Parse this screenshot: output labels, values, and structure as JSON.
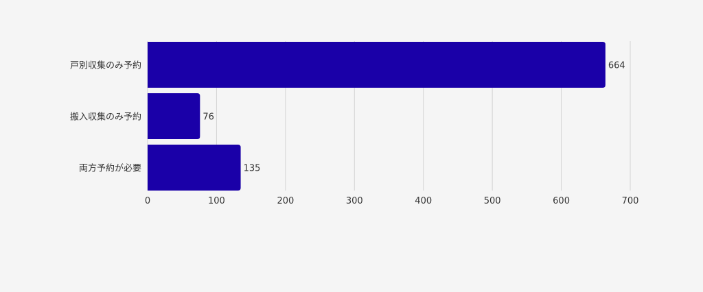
{
  "chart_data": {
    "type": "bar",
    "orientation": "horizontal",
    "categories": [
      "戸別収集のみ予約",
      "搬入収集のみ予約",
      "両方予約が必要"
    ],
    "values": [
      664,
      76,
      135
    ],
    "xlim": [
      0,
      700
    ],
    "x_ticks": [
      "0",
      "100",
      "200",
      "300",
      "400",
      "500",
      "600",
      "700"
    ],
    "grid": true,
    "data_labels": [
      "664",
      "76",
      "135"
    ],
    "bar_color": "#1a00a8"
  }
}
